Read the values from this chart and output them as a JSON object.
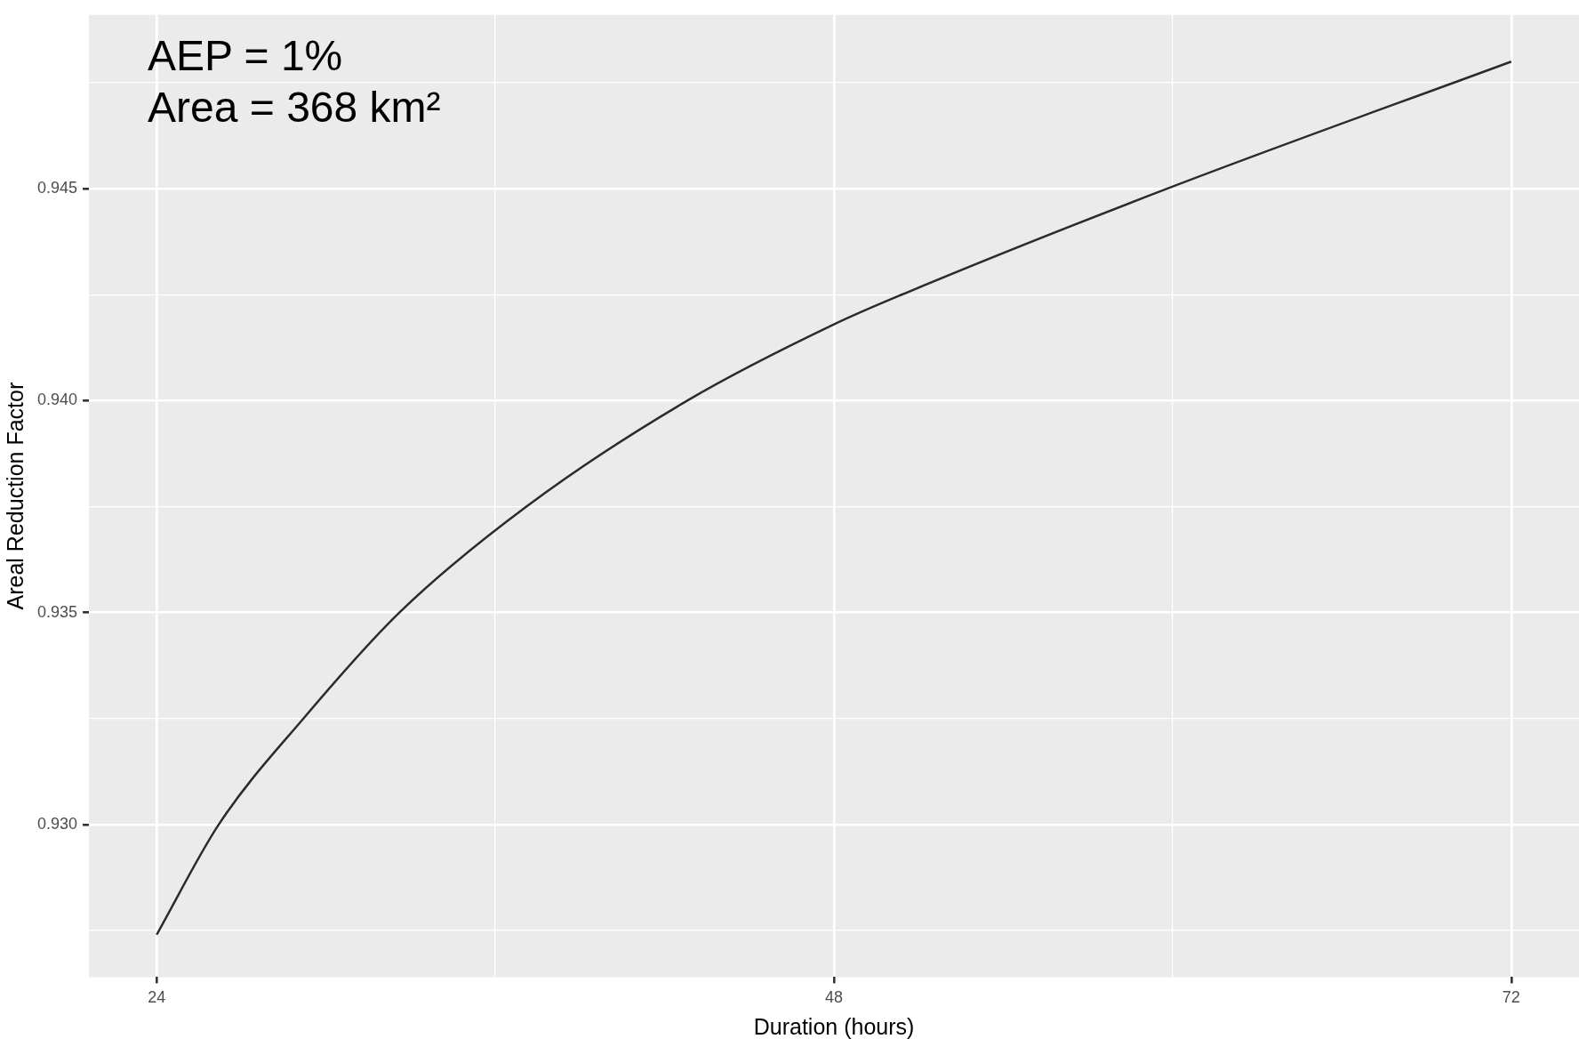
{
  "chart_data": {
    "type": "line",
    "xlabel": "Duration (hours)",
    "ylabel": "Areal Reduction Factor",
    "annotations": [
      "AEP = 1%",
      "Area = 368 km²"
    ],
    "x": [
      24,
      26.2,
      29.2,
      32.6,
      37.1,
      42.8,
      48,
      50.4,
      59.8,
      72
    ],
    "series": [
      {
        "color": "#2b2b2b",
        "values": [
          0.9274,
          0.93,
          0.9325,
          0.935,
          0.9375,
          0.94,
          0.9418,
          0.9425,
          0.945,
          0.948
        ]
      }
    ],
    "xlim": [
      21.6,
      74.4
    ],
    "ylim": [
      0.9264,
      0.9491
    ],
    "xticks": [
      24,
      {
        "value": 36,
        "label": null
      },
      48,
      {
        "value": 60,
        "label": null
      },
      72
    ],
    "yticks": [
      {
        "value": 0.9275,
        "label": null
      },
      {
        "value": 0.93,
        "label": "0.930"
      },
      {
        "value": 0.9325,
        "label": null
      },
      0.935,
      {
        "value": 0.9375,
        "label": null
      },
      {
        "value": 0.94,
        "label": "0.940"
      },
      {
        "value": 0.9425,
        "label": null
      },
      0.945,
      {
        "value": 0.9475,
        "label": null
      }
    ],
    "grid": true,
    "legend": false,
    "marker": "none",
    "line_style": "solid"
  }
}
